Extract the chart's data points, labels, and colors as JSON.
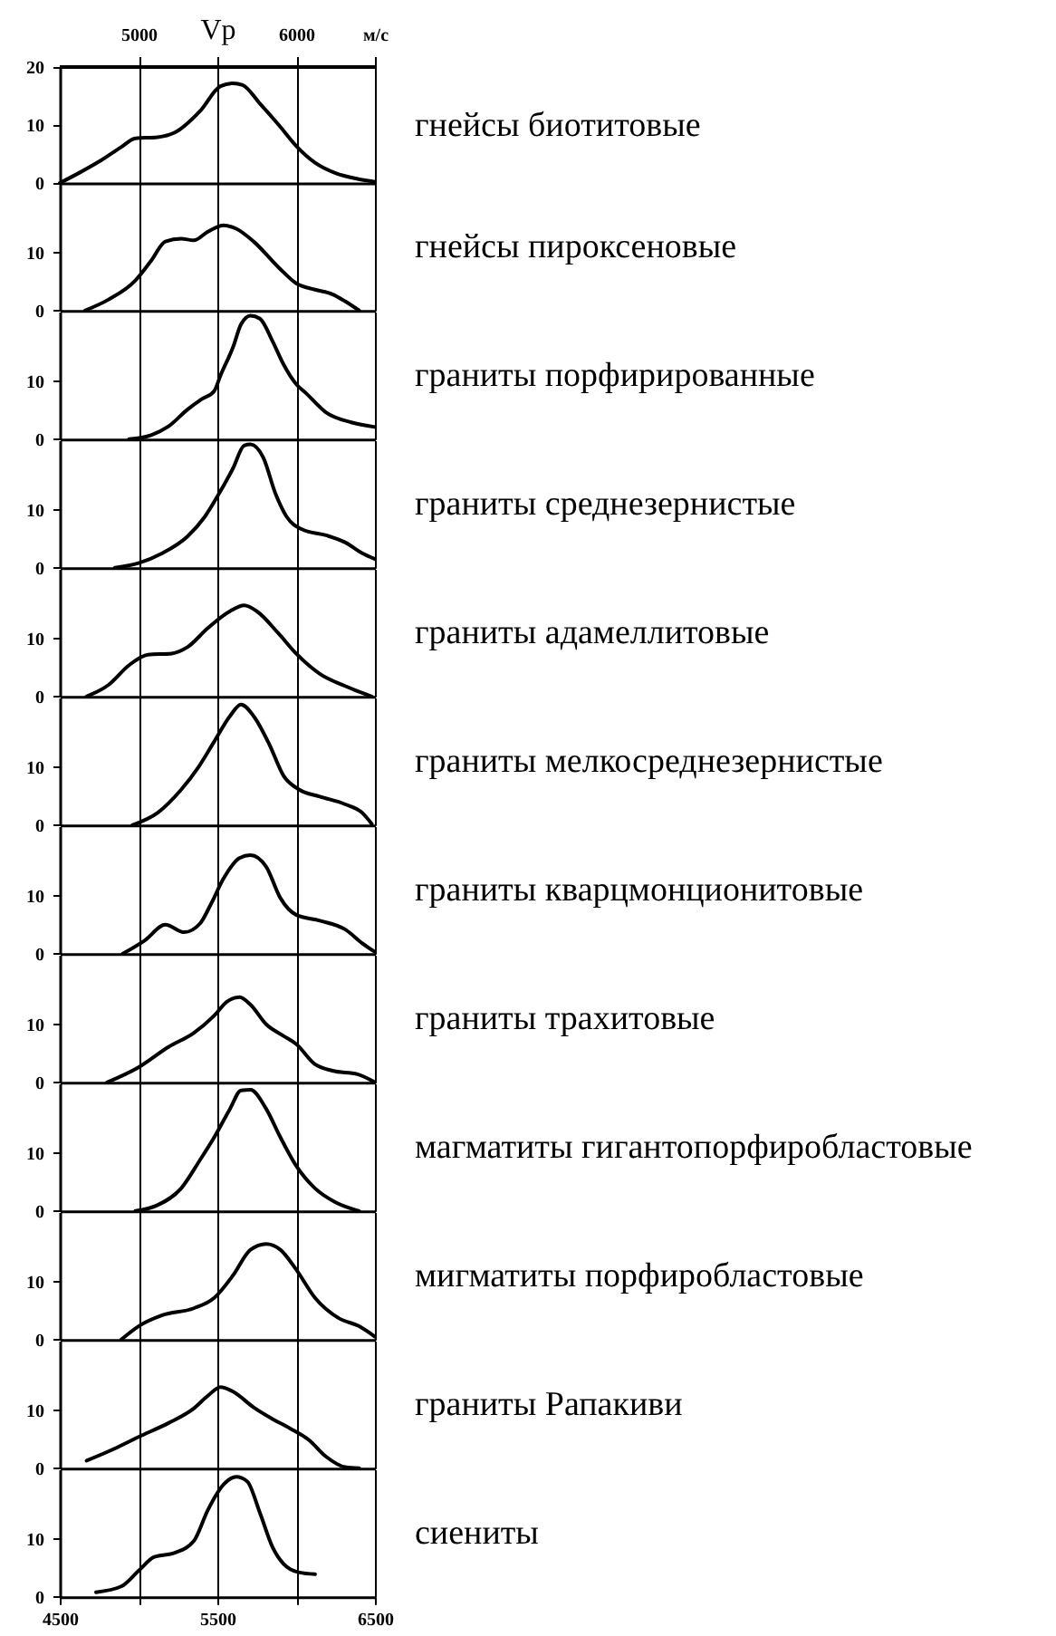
{
  "chart_data": [
    {
      "type": "line",
      "x2label": "Vp",
      "x2lim": [
        4500,
        6500
      ],
      "x2ticks": [
        5000,
        {
          "value": 5500,
          "label": null
        },
        6000,
        {
          "value": 6500,
          "label": "м/с"
        }
      ],
      "xlim": [
        4500,
        6500
      ],
      "xticks": [
        4500,
        5000,
        5500,
        6000,
        6500
      ],
      "ylim": [
        0,
        20
      ],
      "yticks": [
        0,
        10,
        20
      ],
      "tick_labels": "y",
      "grid": "x",
      "series": [
        {
          "name": "гнейсы биотитовые",
          "color": "#000000",
          "x": [
            4500,
            4620,
            4750,
            4890,
            4980,
            5120,
            5230,
            5390,
            5520,
            5600,
            5660,
            5770,
            5890,
            6000,
            6120,
            6250,
            6390,
            6500
          ],
          "values": [
            0,
            1.7,
            3.7,
            6.2,
            7.7,
            7.9,
            8.7,
            12.4,
            16.7,
            17.2,
            16.9,
            13.7,
            10,
            6.4,
            3.5,
            1.7,
            0.7,
            0.2
          ]
        }
      ]
    },
    {
      "type": "line",
      "xlim": [
        4500,
        6500
      ],
      "xticks": [
        4500,
        5000,
        5500,
        6000,
        6500
      ],
      "ylim": [
        0,
        22
      ],
      "yticks": [
        0,
        10
      ],
      "tick_labels": "y",
      "grid": "x",
      "series": [
        {
          "name": "гнейсы пироксеновые",
          "color": "#000000",
          "x": [
            4660,
            4810,
            4980,
            5080,
            5170,
            5270,
            5350,
            5440,
            5540,
            5620,
            5730,
            5890,
            6000,
            6120,
            6230,
            6310,
            6400
          ],
          "values": [
            0,
            1.9,
            5.2,
            8.6,
            11.9,
            12.4,
            12.1,
            13.6,
            14.7,
            14.1,
            11.9,
            7.4,
            4.7,
            3.6,
            2.8,
            1.6,
            0
          ]
        }
      ]
    },
    {
      "type": "line",
      "xlim": [
        4500,
        6500
      ],
      "xticks": [
        4500,
        5000,
        5500,
        6000,
        6500
      ],
      "ylim": [
        0,
        22
      ],
      "yticks": [
        0,
        10
      ],
      "tick_labels": "y",
      "grid": "x",
      "series": [
        {
          "name": "граниты порфирированные",
          "color": "#000000",
          "x": [
            4940,
            5080,
            5190,
            5310,
            5400,
            5480,
            5520,
            5600,
            5650,
            5710,
            5770,
            5850,
            5920,
            6000,
            6060,
            6190,
            6350,
            6500
          ],
          "values": [
            0,
            0.7,
            2.2,
            5.1,
            6.9,
            8.3,
            11,
            15.9,
            19.8,
            21.3,
            20.8,
            16.9,
            12.9,
            9.5,
            8,
            4.6,
            2.9,
            2.1
          ]
        }
      ]
    },
    {
      "type": "line",
      "xlim": [
        4500,
        6500
      ],
      "xticks": [
        4500,
        5000,
        5500,
        6000,
        6500
      ],
      "ylim": [
        0,
        22
      ],
      "yticks": [
        0,
        10
      ],
      "tick_labels": "y",
      "grid": "x",
      "series": [
        {
          "name": "граниты среднезернистые",
          "color": "#000000",
          "x": [
            4850,
            5000,
            5150,
            5310,
            5420,
            5500,
            5600,
            5670,
            5710,
            5790,
            5870,
            5940,
            6040,
            6190,
            6310,
            6420,
            6500
          ],
          "values": [
            0,
            0.8,
            2.5,
            5.4,
            8.8,
            12.3,
            17.2,
            21.1,
            21.3,
            19.1,
            12.7,
            8.8,
            6.6,
            5.6,
            4.4,
            2.5,
            1.5
          ]
        }
      ]
    },
    {
      "type": "line",
      "xlim": [
        4500,
        6500
      ],
      "xticks": [
        4500,
        5000,
        5500,
        6000,
        6500
      ],
      "ylim": [
        0,
        22
      ],
      "yticks": [
        0,
        10
      ],
      "tick_labels": "y",
      "grid": "x",
      "series": [
        {
          "name": "граниты адамеллитовые",
          "color": "#000000",
          "x": [
            4670,
            4810,
            4940,
            5060,
            5210,
            5310,
            5440,
            5580,
            5670,
            5750,
            5890,
            6000,
            6150,
            6310,
            6480
          ],
          "values": [
            0,
            2,
            5.4,
            7.2,
            7.4,
            8.5,
            11.8,
            14.7,
            15.7,
            14.7,
            10.8,
            7.4,
            3.9,
            1.8,
            0
          ]
        }
      ]
    },
    {
      "type": "line",
      "xlim": [
        4500,
        6500
      ],
      "xticks": [
        4500,
        5000,
        5500,
        6000,
        6500
      ],
      "ylim": [
        0,
        22
      ],
      "yticks": [
        0,
        10
      ],
      "tick_labels": "y",
      "grid": "x",
      "series": [
        {
          "name": "граниты мелкосреднезернистые",
          "color": "#000000",
          "x": [
            4960,
            5120,
            5270,
            5380,
            5480,
            5580,
            5650,
            5730,
            5830,
            5920,
            6020,
            6150,
            6310,
            6420,
            6480
          ],
          "values": [
            0,
            2.1,
            6.1,
            10,
            14.4,
            18.8,
            20.8,
            18.8,
            13.9,
            8.5,
            6.1,
            4.9,
            3.6,
            2.1,
            0.2
          ]
        }
      ]
    },
    {
      "type": "line",
      "xlim": [
        4500,
        6500
      ],
      "xticks": [
        4500,
        5000,
        5500,
        6000,
        6500
      ],
      "ylim": [
        0,
        22
      ],
      "yticks": [
        0,
        10
      ],
      "tick_labels": "y",
      "grid": "x",
      "series": [
        {
          "name": "граниты кварцмонционитовые",
          "color": "#000000",
          "x": [
            4900,
            5040,
            5170,
            5290,
            5390,
            5460,
            5540,
            5640,
            5710,
            5810,
            5900,
            6000,
            6150,
            6310,
            6420,
            6500
          ],
          "values": [
            0,
            2.3,
            5,
            3.7,
            5.2,
            8.6,
            13,
            16.5,
            17,
            15,
            9.6,
            6.7,
            5.7,
            4.2,
            1.8,
            0.3
          ]
        }
      ]
    },
    {
      "type": "line",
      "xlim": [
        4500,
        6500
      ],
      "xticks": [
        4500,
        5000,
        5500,
        6000,
        6500
      ],
      "ylim": [
        0,
        22
      ],
      "yticks": [
        0,
        10
      ],
      "tick_labels": "y",
      "grid": "x",
      "series": [
        {
          "name": "граниты трахитовые",
          "color": "#000000",
          "x": [
            4800,
            5000,
            5190,
            5350,
            5480,
            5560,
            5640,
            5710,
            5810,
            5920,
            6000,
            6120,
            6230,
            6390,
            6500
          ],
          "values": [
            0,
            2.6,
            6.1,
            8.5,
            11.5,
            13.9,
            14.7,
            13.4,
            10,
            8,
            6.6,
            3.1,
            2,
            1.4,
            0
          ]
        }
      ]
    },
    {
      "type": "line",
      "xlim": [
        4500,
        6500
      ],
      "xticks": [
        4500,
        5000,
        5500,
        6000,
        6500
      ],
      "ylim": [
        0,
        22
      ],
      "yticks": [
        0,
        10
      ],
      "tick_labels": "y",
      "grid": "x",
      "series": [
        {
          "name": "магматиты гигантопорфиробластовые",
          "color": "#000000",
          "x": [
            4980,
            5120,
            5270,
            5390,
            5480,
            5580,
            5650,
            5710,
            5810,
            5900,
            6000,
            6120,
            6250,
            6400
          ],
          "values": [
            0,
            1,
            3.9,
            8.8,
            12.7,
            17.6,
            20.8,
            20.9,
            17.6,
            12.7,
            7.8,
            3.9,
            1.5,
            0
          ]
        }
      ]
    },
    {
      "type": "line",
      "xlim": [
        4500,
        6500
      ],
      "xticks": [
        4500,
        5000,
        5500,
        6000,
        6500
      ],
      "ylim": [
        0,
        22
      ],
      "yticks": [
        0,
        10
      ],
      "tick_labels": "y",
      "grid": "x",
      "series": [
        {
          "name": "мигматиты порфиробластовые",
          "color": "#000000",
          "x": [
            4890,
            5000,
            5150,
            5350,
            5480,
            5600,
            5710,
            5810,
            5900,
            6000,
            6120,
            6270,
            6400,
            6500
          ],
          "values": [
            0,
            2.3,
            4.2,
            5.4,
            7.2,
            11.1,
            15.5,
            16.5,
            15.5,
            12.1,
            7.2,
            3.7,
            2.3,
            0.5
          ]
        }
      ]
    },
    {
      "type": "line",
      "xlim": [
        4500,
        6500
      ],
      "xticks": [
        4500,
        5000,
        5500,
        6000,
        6500
      ],
      "ylim": [
        0,
        22
      ],
      "yticks": [
        0,
        10
      ],
      "tick_labels": "y",
      "grid": "x",
      "series": [
        {
          "name": "граниты Рапакиви",
          "color": "#000000",
          "x": [
            4670,
            4850,
            5000,
            5190,
            5350,
            5440,
            5520,
            5600,
            5730,
            5850,
            5960,
            6080,
            6190,
            6310,
            6400
          ],
          "values": [
            1.3,
            3.4,
            5.4,
            7.8,
            10.3,
            12.5,
            14,
            13.2,
            10.5,
            8.5,
            6.9,
            4.9,
            2,
            0.2,
            0
          ]
        }
      ]
    },
    {
      "type": "line",
      "xlim": [
        4500,
        6500
      ],
      "xticks": [
        4500,
        {
          "value": 5000,
          "label": null
        },
        5500,
        {
          "value": 6000,
          "label": null
        },
        6500
      ],
      "ylim": [
        0,
        22
      ],
      "yticks": [
        0,
        10
      ],
      "grid": "x",
      "series": [
        {
          "name": "сиениты",
          "color": "#000000",
          "x": [
            4730,
            4890,
            5000,
            5100,
            5230,
            5350,
            5440,
            5540,
            5620,
            5690,
            5770,
            5850,
            5920,
            6020,
            6120
          ],
          "values": [
            0.8,
            1.8,
            4.5,
            6.9,
            7.6,
            9.6,
            15,
            19.4,
            20.7,
            19.9,
            14.5,
            8.6,
            5.7,
            4.2,
            3.9
          ]
        }
      ]
    }
  ]
}
